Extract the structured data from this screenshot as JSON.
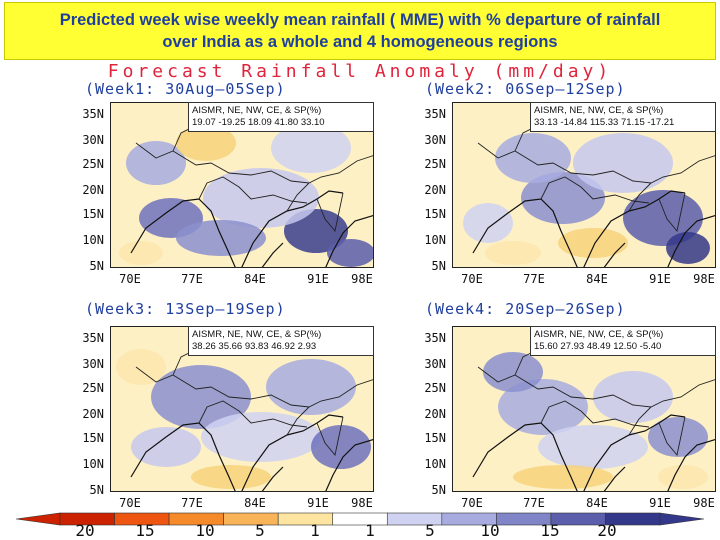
{
  "banner": {
    "line1": "Predicted week wise weekly mean rainfall  ( MME) with % departure of rainfall",
    "line2": "over India as a whole and 4 homogeneous regions"
  },
  "main_title": "Forecast Rainfall Anomaly (mm/day)",
  "panels": [
    {
      "title": "(Week1: 30Aug—05Sep)",
      "stats_header": "AISMR,    NE,   NW,   CE, & SP(%)",
      "stats_values": "19.07   -19.25  18.09  41.80  33.10"
    },
    {
      "title": "(Week2: 06Sep—12Sep)",
      "stats_header": "AISMR,   NE,   NW,    CE,  &    SP(%)",
      "stats_values": "33.13  -14.84 115.33 71.15  -17.21"
    },
    {
      "title": "(Week3: 13Sep—19Sep)",
      "stats_header": "AISMR,   NE,      NW,  CE, & SP(%)",
      "stats_values": "38.26  35.66  93.83   46.92  2.93"
    },
    {
      "title": "(Week4: 20Sep—26Sep)",
      "stats_header": "AISMR,   NE,       NW,   CE,    & SP(%)",
      "stats_values": "15.60   27.93  48.49  12.50  -5.40"
    }
  ],
  "lat_labels": [
    "35N",
    "30N",
    "25N",
    "20N",
    "15N",
    "10N",
    "5N"
  ],
  "lon_labels": [
    "70E",
    "77E",
    "84E",
    "91E",
    "98E"
  ],
  "colorbar": {
    "labels": [
      "20",
      "15",
      "10",
      "5",
      "1",
      "1",
      "5",
      "10",
      "15",
      "20"
    ],
    "colors": [
      "#cc2200",
      "#ee5511",
      "#f58a2a",
      "#f9b45a",
      "#fde4a0",
      "#ffffff",
      "#d0d2f2",
      "#a8abe0",
      "#8085c8",
      "#5a5eab",
      "#34388a"
    ]
  }
}
